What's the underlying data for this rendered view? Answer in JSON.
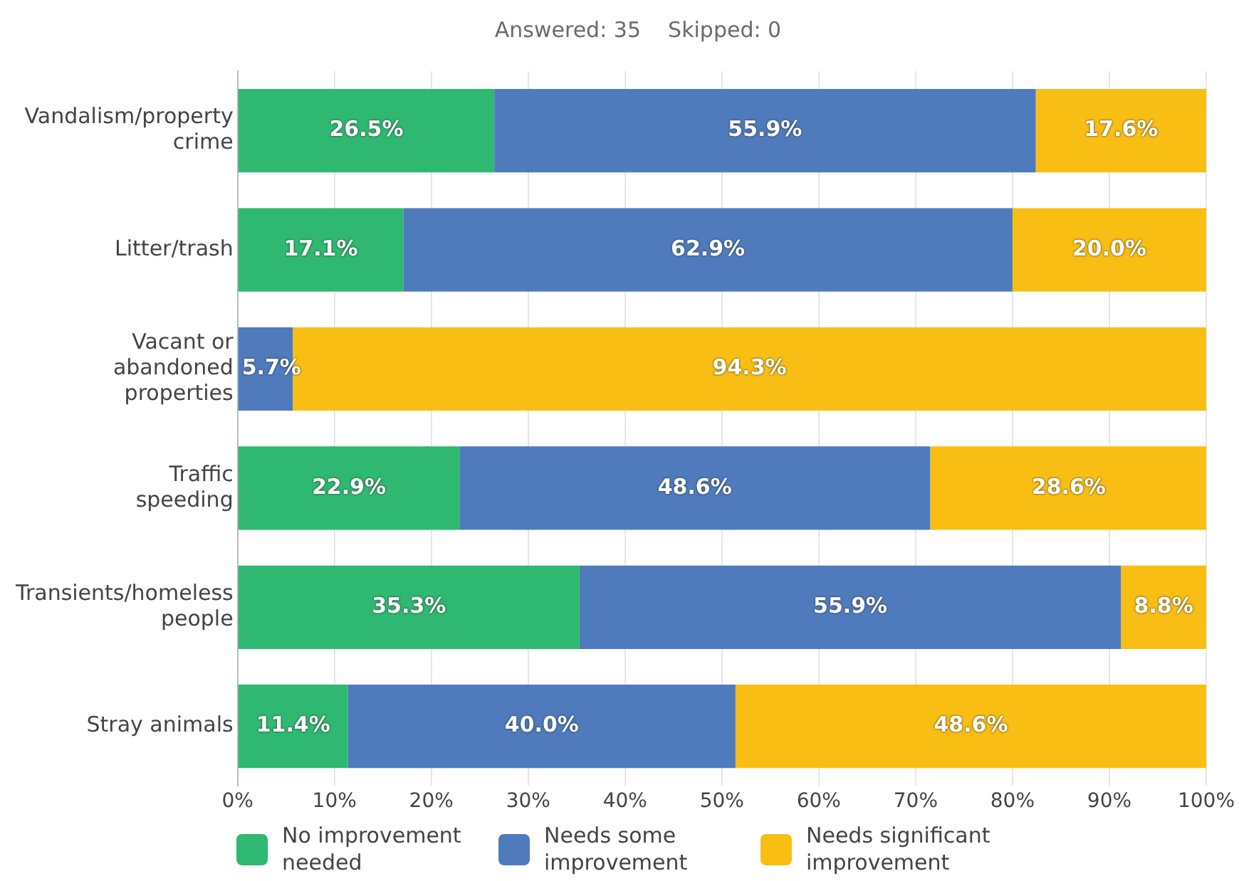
{
  "chart_data": {
    "type": "bar",
    "orientation": "horizontal",
    "stacked": true,
    "title": "Answered: 35    Skipped: 0",
    "categories": [
      "Vandalism/property crime",
      "Litter/trash",
      "Vacant or abandoned properties",
      "Traffic speeding",
      "Transients/homeless people",
      "Stray animals"
    ],
    "series": [
      {
        "name": "No improvement needed",
        "color": "#2eb872",
        "values": [
          26.5,
          17.1,
          0,
          22.9,
          35.3,
          11.4
        ],
        "value_labels": [
          "26.5%",
          "17.1%",
          null,
          "22.9%",
          "35.3%",
          "11.4%"
        ]
      },
      {
        "name": "Needs some improvement",
        "color": "#4f7bbd",
        "values": [
          55.9,
          62.9,
          5.7,
          48.6,
          55.9,
          40.0
        ],
        "value_labels": [
          "55.9%",
          "62.9%",
          "5.7%",
          "48.6%",
          "55.9%",
          "40.0%"
        ]
      },
      {
        "name": "Needs significant improvement",
        "color": "#f9be13",
        "values": [
          17.6,
          20.0,
          94.3,
          28.6,
          8.8,
          48.6
        ],
        "value_labels": [
          "17.6%",
          "20.0%",
          "94.3%",
          "28.6%",
          "8.8%",
          "48.6%"
        ]
      }
    ],
    "xlim": [
      0,
      100
    ],
    "xticks": [
      {
        "value": 0,
        "label": "0%"
      },
      {
        "value": 10,
        "label": "10%"
      },
      {
        "value": 20,
        "label": "20%"
      },
      {
        "value": 30,
        "label": "30%"
      },
      {
        "value": 40,
        "label": "40%"
      },
      {
        "value": 50,
        "label": "50%"
      },
      {
        "value": 60,
        "label": "60%"
      },
      {
        "value": 70,
        "label": "70%"
      },
      {
        "value": 80,
        "label": "80%"
      },
      {
        "value": 90,
        "label": "90%"
      },
      {
        "value": 100,
        "label": "100%"
      }
    ],
    "grid": "x",
    "legend": "bottom"
  }
}
